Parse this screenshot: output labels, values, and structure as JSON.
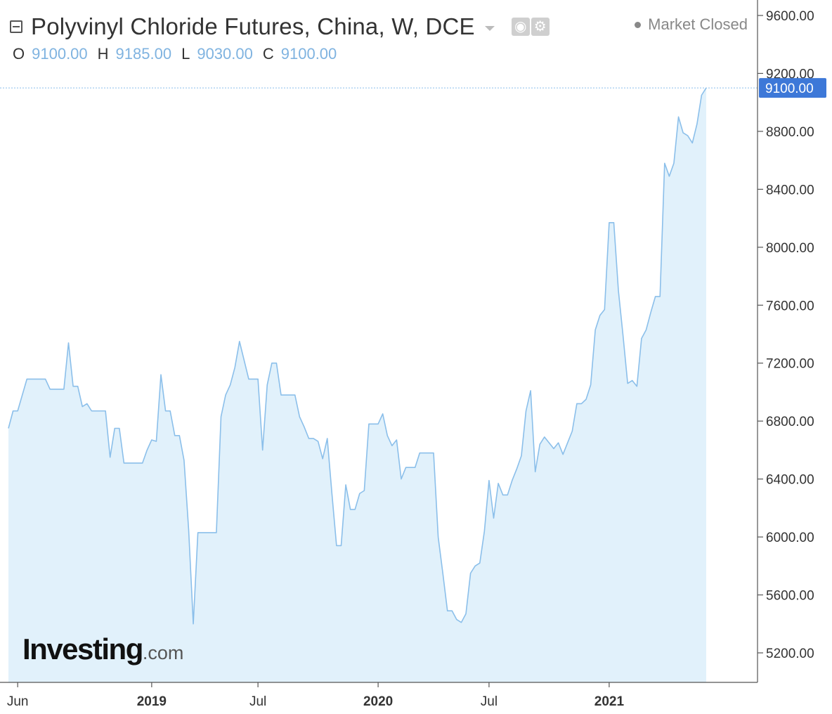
{
  "header": {
    "title": "Polyvinyl Chloride Futures, China, W, DCE",
    "market_status": "Market Closed",
    "ohlc": [
      {
        "key": "O",
        "value": "9100.00"
      },
      {
        "key": "H",
        "value": "9185.00"
      },
      {
        "key": "L",
        "value": "9030.00"
      },
      {
        "key": "C",
        "value": "9100.00"
      }
    ],
    "icons": [
      "collapse-icon",
      "dropdown-icon",
      "eye-icon",
      "gear-icon"
    ]
  },
  "logo": {
    "main": "Investing",
    "suffix": ".com"
  },
  "colors": {
    "line": "#8bbfea",
    "area": "#e1f1fb",
    "price_tag": "#3d78d8",
    "axis": "#555555"
  },
  "chart_data": {
    "type": "area",
    "title": "Polyvinyl Chloride Futures, China, W, DCE",
    "xlabel": "",
    "ylabel": "",
    "ylim": [
      4950,
      9800
    ],
    "y_ticks": [
      5200,
      5600,
      6000,
      6400,
      6800,
      7200,
      7600,
      8000,
      8400,
      8800,
      9200,
      9600
    ],
    "y_tick_labels": [
      "5200.00",
      "5600.00",
      "6000.00",
      "6400.00",
      "6800.00",
      "7200.00",
      "7600.00",
      "8000.00",
      "8400.00",
      "8800.00",
      "9200.00",
      "9600.00"
    ],
    "x_tick_labels": [
      {
        "label": "Jun",
        "week": 2,
        "bold": false
      },
      {
        "label": "2019",
        "week": 31,
        "bold": true
      },
      {
        "label": "Jul",
        "week": 54,
        "bold": false
      },
      {
        "label": "2020",
        "week": 80,
        "bold": true
      },
      {
        "label": "Jul",
        "week": 104,
        "bold": false
      },
      {
        "label": "2021",
        "week": 130,
        "bold": true
      }
    ],
    "last_price": 9100,
    "last_price_label": "9100.00",
    "series": [
      {
        "values": [
          6750,
          6870,
          6870,
          6980,
          7090,
          7090,
          7090,
          7090,
          7090,
          7020,
          7020,
          7020,
          7020,
          7340,
          7040,
          7040,
          6900,
          6920,
          6870,
          6870,
          6870,
          6870,
          6550,
          6750,
          6750,
          6510,
          6510,
          6510,
          6510,
          6510,
          6600,
          6670,
          6660,
          7120,
          6870,
          6870,
          6700,
          6700,
          6530,
          6050,
          5400,
          6030,
          6030,
          6030,
          6030,
          6030,
          6830,
          6980,
          7050,
          7170,
          7350,
          7220,
          7090,
          7090,
          7090,
          6600,
          7050,
          7200,
          7200,
          6980,
          6980,
          6980,
          6980,
          6830,
          6760,
          6680,
          6680,
          6660,
          6540,
          6680,
          6300,
          5940,
          5940,
          6360,
          6190,
          6190,
          6300,
          6320,
          6780,
          6780,
          6780,
          6850,
          6700,
          6630,
          6670,
          6400,
          6480,
          6480,
          6480,
          6580,
          6580,
          6580,
          6580,
          6000,
          5750,
          5490,
          5490,
          5430,
          5410,
          5470,
          5750,
          5800,
          5820,
          6040,
          6390,
          6130,
          6370,
          6290,
          6290,
          6390,
          6470,
          6560,
          6870,
          7010,
          6450,
          6640,
          6690,
          6650,
          6610,
          6650,
          6570,
          6650,
          6730,
          6920,
          6920,
          6950,
          7050,
          7430,
          7530,
          7570,
          8170,
          8170,
          7700,
          7390,
          7060,
          7080,
          7040,
          7370,
          7430,
          7550,
          7660,
          7660,
          8580,
          8490,
          8580,
          8900,
          8790,
          8770,
          8720,
          8850,
          9050,
          9100
        ]
      }
    ]
  }
}
